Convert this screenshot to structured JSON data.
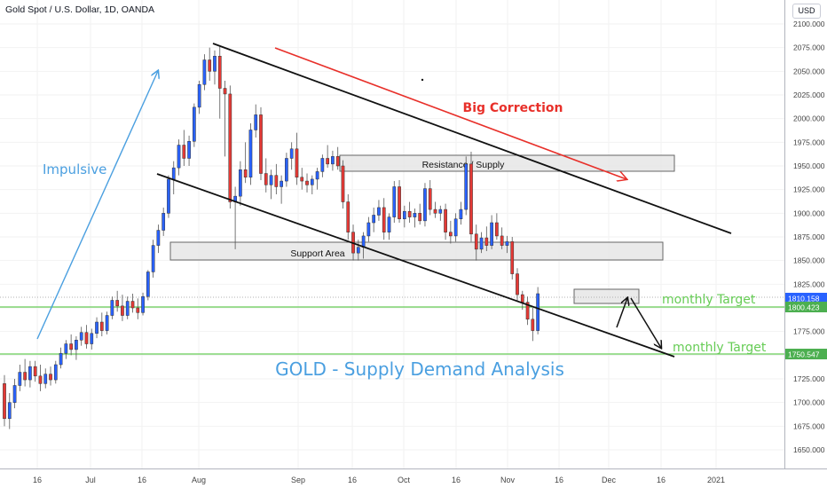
{
  "header": {
    "symbol_title": "Gold Spot / U.S. Dollar, 1D, OANDA",
    "currency_button": "USD"
  },
  "colors": {
    "up": "#2962ff",
    "down": "#e53935",
    "green_level": "#66cc55",
    "blue_text": "#4a9fe0",
    "red_text": "#e8302a",
    "grid": "#f2f2f2",
    "axis_text": "#444444"
  },
  "chart_data": {
    "type": "candlestick",
    "title": "GOLD - Supply Demand Analysis",
    "ylim": [
      1630,
      2125
    ],
    "y_ticks": [
      2100,
      2075,
      2050,
      2025,
      2000,
      1975,
      1950,
      1925,
      1900,
      1875,
      1850,
      1825,
      1800,
      1775,
      1750,
      1725,
      1700,
      1675,
      1650
    ],
    "x_tick_labels": [
      "16",
      "Jul",
      "16",
      "Aug",
      "Sep",
      "16",
      "Oct",
      "16",
      "Nov",
      "16",
      "Dec",
      "16",
      "2021"
    ],
    "price_labels": [
      {
        "value": 1810.158,
        "text": "1810.158",
        "color": "#2962ff"
      },
      {
        "value": 1800.423,
        "text": "1800.423",
        "color": "#4caf50"
      },
      {
        "value": 1750.547,
        "text": "1750.547",
        "color": "#4caf50"
      }
    ],
    "horizontal_lines": [
      {
        "value": 1800.423,
        "color": "#66cc55"
      },
      {
        "value": 1750.547,
        "color": "#66cc55"
      },
      {
        "value": 1810.158,
        "color": "#999999",
        "style": "dotted"
      }
    ],
    "zones": [
      {
        "label": "Resistance / Supply",
        "from": 1943,
        "to": 1961
      },
      {
        "label": "Support Area",
        "from": 1851,
        "to": 1869
      },
      {
        "label": "",
        "from": 1801,
        "to": 1819
      }
    ],
    "annotations": [
      "Impulsive",
      "Big Correction",
      "monthly Target",
      "monthly Target"
    ],
    "candles": [
      {
        "o": 1720,
        "h": 1729,
        "l": 1675,
        "c": 1683
      },
      {
        "o": 1683,
        "h": 1710,
        "l": 1672,
        "c": 1700
      },
      {
        "o": 1700,
        "h": 1725,
        "l": 1694,
        "c": 1718
      },
      {
        "o": 1718,
        "h": 1740,
        "l": 1712,
        "c": 1732
      },
      {
        "o": 1732,
        "h": 1746,
        "l": 1717,
        "c": 1724
      },
      {
        "o": 1724,
        "h": 1744,
        "l": 1716,
        "c": 1738
      },
      {
        "o": 1738,
        "h": 1744,
        "l": 1722,
        "c": 1728
      },
      {
        "o": 1728,
        "h": 1740,
        "l": 1712,
        "c": 1720
      },
      {
        "o": 1720,
        "h": 1736,
        "l": 1715,
        "c": 1730
      },
      {
        "o": 1730,
        "h": 1738,
        "l": 1718,
        "c": 1724
      },
      {
        "o": 1724,
        "h": 1744,
        "l": 1720,
        "c": 1740
      },
      {
        "o": 1740,
        "h": 1758,
        "l": 1736,
        "c": 1752
      },
      {
        "o": 1752,
        "h": 1766,
        "l": 1746,
        "c": 1762
      },
      {
        "o": 1762,
        "h": 1772,
        "l": 1750,
        "c": 1756
      },
      {
        "o": 1756,
        "h": 1770,
        "l": 1745,
        "c": 1766
      },
      {
        "o": 1766,
        "h": 1780,
        "l": 1760,
        "c": 1774
      },
      {
        "o": 1774,
        "h": 1782,
        "l": 1757,
        "c": 1762
      },
      {
        "o": 1762,
        "h": 1778,
        "l": 1756,
        "c": 1773
      },
      {
        "o": 1773,
        "h": 1790,
        "l": 1768,
        "c": 1785
      },
      {
        "o": 1785,
        "h": 1795,
        "l": 1770,
        "c": 1776
      },
      {
        "o": 1776,
        "h": 1796,
        "l": 1772,
        "c": 1792
      },
      {
        "o": 1792,
        "h": 1812,
        "l": 1788,
        "c": 1808
      },
      {
        "o": 1808,
        "h": 1818,
        "l": 1796,
        "c": 1802
      },
      {
        "o": 1802,
        "h": 1814,
        "l": 1786,
        "c": 1792
      },
      {
        "o": 1792,
        "h": 1812,
        "l": 1788,
        "c": 1807
      },
      {
        "o": 1807,
        "h": 1815,
        "l": 1795,
        "c": 1800
      },
      {
        "o": 1800,
        "h": 1810,
        "l": 1788,
        "c": 1795
      },
      {
        "o": 1795,
        "h": 1816,
        "l": 1792,
        "c": 1812
      },
      {
        "o": 1812,
        "h": 1840,
        "l": 1808,
        "c": 1838
      },
      {
        "o": 1838,
        "h": 1872,
        "l": 1832,
        "c": 1866
      },
      {
        "o": 1866,
        "h": 1888,
        "l": 1858,
        "c": 1882
      },
      {
        "o": 1882,
        "h": 1906,
        "l": 1876,
        "c": 1900
      },
      {
        "o": 1900,
        "h": 1940,
        "l": 1895,
        "c": 1936
      },
      {
        "o": 1936,
        "h": 1955,
        "l": 1920,
        "c": 1948
      },
      {
        "o": 1948,
        "h": 1978,
        "l": 1940,
        "c": 1972
      },
      {
        "o": 1972,
        "h": 1988,
        "l": 1950,
        "c": 1958
      },
      {
        "o": 1958,
        "h": 1982,
        "l": 1950,
        "c": 1976
      },
      {
        "o": 1976,
        "h": 2016,
        "l": 1970,
        "c": 2012
      },
      {
        "o": 2012,
        "h": 2040,
        "l": 2005,
        "c": 2036
      },
      {
        "o": 2036,
        "h": 2068,
        "l": 2030,
        "c": 2062
      },
      {
        "o": 2062,
        "h": 2075,
        "l": 2040,
        "c": 2050
      },
      {
        "o": 2050,
        "h": 2072,
        "l": 2036,
        "c": 2066
      },
      {
        "o": 2066,
        "h": 2076,
        "l": 2000,
        "c": 2032
      },
      {
        "o": 2032,
        "h": 2040,
        "l": 1960,
        "c": 2026
      },
      {
        "o": 2026,
        "h": 2035,
        "l": 1905,
        "c": 1912
      },
      {
        "o": 1912,
        "h": 1928,
        "l": 1862,
        "c": 1918
      },
      {
        "o": 1918,
        "h": 1955,
        "l": 1908,
        "c": 1946
      },
      {
        "o": 1946,
        "h": 1975,
        "l": 1932,
        "c": 1938
      },
      {
        "o": 1938,
        "h": 1995,
        "l": 1930,
        "c": 1988
      },
      {
        "o": 1988,
        "h": 2015,
        "l": 1980,
        "c": 2004
      },
      {
        "o": 2004,
        "h": 2012,
        "l": 1935,
        "c": 1942
      },
      {
        "o": 1942,
        "h": 1958,
        "l": 1922,
        "c": 1930
      },
      {
        "o": 1930,
        "h": 1946,
        "l": 1915,
        "c": 1940
      },
      {
        "o": 1940,
        "h": 1952,
        "l": 1920,
        "c": 1928
      },
      {
        "o": 1928,
        "h": 1940,
        "l": 1910,
        "c": 1934
      },
      {
        "o": 1934,
        "h": 1964,
        "l": 1928,
        "c": 1958
      },
      {
        "o": 1958,
        "h": 1975,
        "l": 1946,
        "c": 1968
      },
      {
        "o": 1968,
        "h": 1985,
        "l": 1930,
        "c": 1938
      },
      {
        "o": 1938,
        "h": 1948,
        "l": 1925,
        "c": 1934
      },
      {
        "o": 1934,
        "h": 1942,
        "l": 1922,
        "c": 1930
      },
      {
        "o": 1930,
        "h": 1940,
        "l": 1920,
        "c": 1936
      },
      {
        "o": 1936,
        "h": 1948,
        "l": 1925,
        "c": 1944
      },
      {
        "o": 1944,
        "h": 1962,
        "l": 1938,
        "c": 1958
      },
      {
        "o": 1958,
        "h": 1972,
        "l": 1948,
        "c": 1952
      },
      {
        "o": 1952,
        "h": 1966,
        "l": 1945,
        "c": 1960
      },
      {
        "o": 1960,
        "h": 1970,
        "l": 1946,
        "c": 1950
      },
      {
        "o": 1950,
        "h": 1956,
        "l": 1905,
        "c": 1912
      },
      {
        "o": 1912,
        "h": 1920,
        "l": 1872,
        "c": 1880
      },
      {
        "o": 1880,
        "h": 1888,
        "l": 1850,
        "c": 1858
      },
      {
        "o": 1858,
        "h": 1872,
        "l": 1850,
        "c": 1864
      },
      {
        "o": 1864,
        "h": 1880,
        "l": 1852,
        "c": 1876
      },
      {
        "o": 1876,
        "h": 1896,
        "l": 1870,
        "c": 1890
      },
      {
        "o": 1890,
        "h": 1906,
        "l": 1880,
        "c": 1898
      },
      {
        "o": 1898,
        "h": 1914,
        "l": 1892,
        "c": 1906
      },
      {
        "o": 1906,
        "h": 1916,
        "l": 1872,
        "c": 1880
      },
      {
        "o": 1880,
        "h": 1900,
        "l": 1872,
        "c": 1896
      },
      {
        "o": 1896,
        "h": 1934,
        "l": 1890,
        "c": 1928
      },
      {
        "o": 1928,
        "h": 1935,
        "l": 1890,
        "c": 1894
      },
      {
        "o": 1894,
        "h": 1908,
        "l": 1885,
        "c": 1902
      },
      {
        "o": 1902,
        "h": 1912,
        "l": 1890,
        "c": 1896
      },
      {
        "o": 1896,
        "h": 1905,
        "l": 1885,
        "c": 1900
      },
      {
        "o": 1900,
        "h": 1910,
        "l": 1888,
        "c": 1892
      },
      {
        "o": 1892,
        "h": 1932,
        "l": 1886,
        "c": 1926
      },
      {
        "o": 1926,
        "h": 1935,
        "l": 1898,
        "c": 1904
      },
      {
        "o": 1904,
        "h": 1912,
        "l": 1895,
        "c": 1900
      },
      {
        "o": 1900,
        "h": 1908,
        "l": 1892,
        "c": 1904
      },
      {
        "o": 1904,
        "h": 1910,
        "l": 1872,
        "c": 1880
      },
      {
        "o": 1880,
        "h": 1892,
        "l": 1868,
        "c": 1876
      },
      {
        "o": 1876,
        "h": 1900,
        "l": 1870,
        "c": 1894
      },
      {
        "o": 1894,
        "h": 1912,
        "l": 1888,
        "c": 1904
      },
      {
        "o": 1904,
        "h": 1960,
        "l": 1898,
        "c": 1952
      },
      {
        "o": 1952,
        "h": 1965,
        "l": 1870,
        "c": 1878
      },
      {
        "o": 1878,
        "h": 1888,
        "l": 1850,
        "c": 1862
      },
      {
        "o": 1862,
        "h": 1880,
        "l": 1858,
        "c": 1874
      },
      {
        "o": 1874,
        "h": 1886,
        "l": 1860,
        "c": 1866
      },
      {
        "o": 1866,
        "h": 1898,
        "l": 1862,
        "c": 1890
      },
      {
        "o": 1890,
        "h": 1900,
        "l": 1872,
        "c": 1876
      },
      {
        "o": 1876,
        "h": 1885,
        "l": 1862,
        "c": 1866
      },
      {
        "o": 1866,
        "h": 1876,
        "l": 1858,
        "c": 1870
      },
      {
        "o": 1870,
        "h": 1875,
        "l": 1830,
        "c": 1836
      },
      {
        "o": 1836,
        "h": 1842,
        "l": 1808,
        "c": 1814
      },
      {
        "o": 1814,
        "h": 1818,
        "l": 1798,
        "c": 1806
      },
      {
        "o": 1806,
        "h": 1812,
        "l": 1782,
        "c": 1788
      },
      {
        "o": 1788,
        "h": 1800,
        "l": 1765,
        "c": 1776
      },
      {
        "o": 1776,
        "h": 1822,
        "l": 1772,
        "c": 1815
      }
    ]
  }
}
